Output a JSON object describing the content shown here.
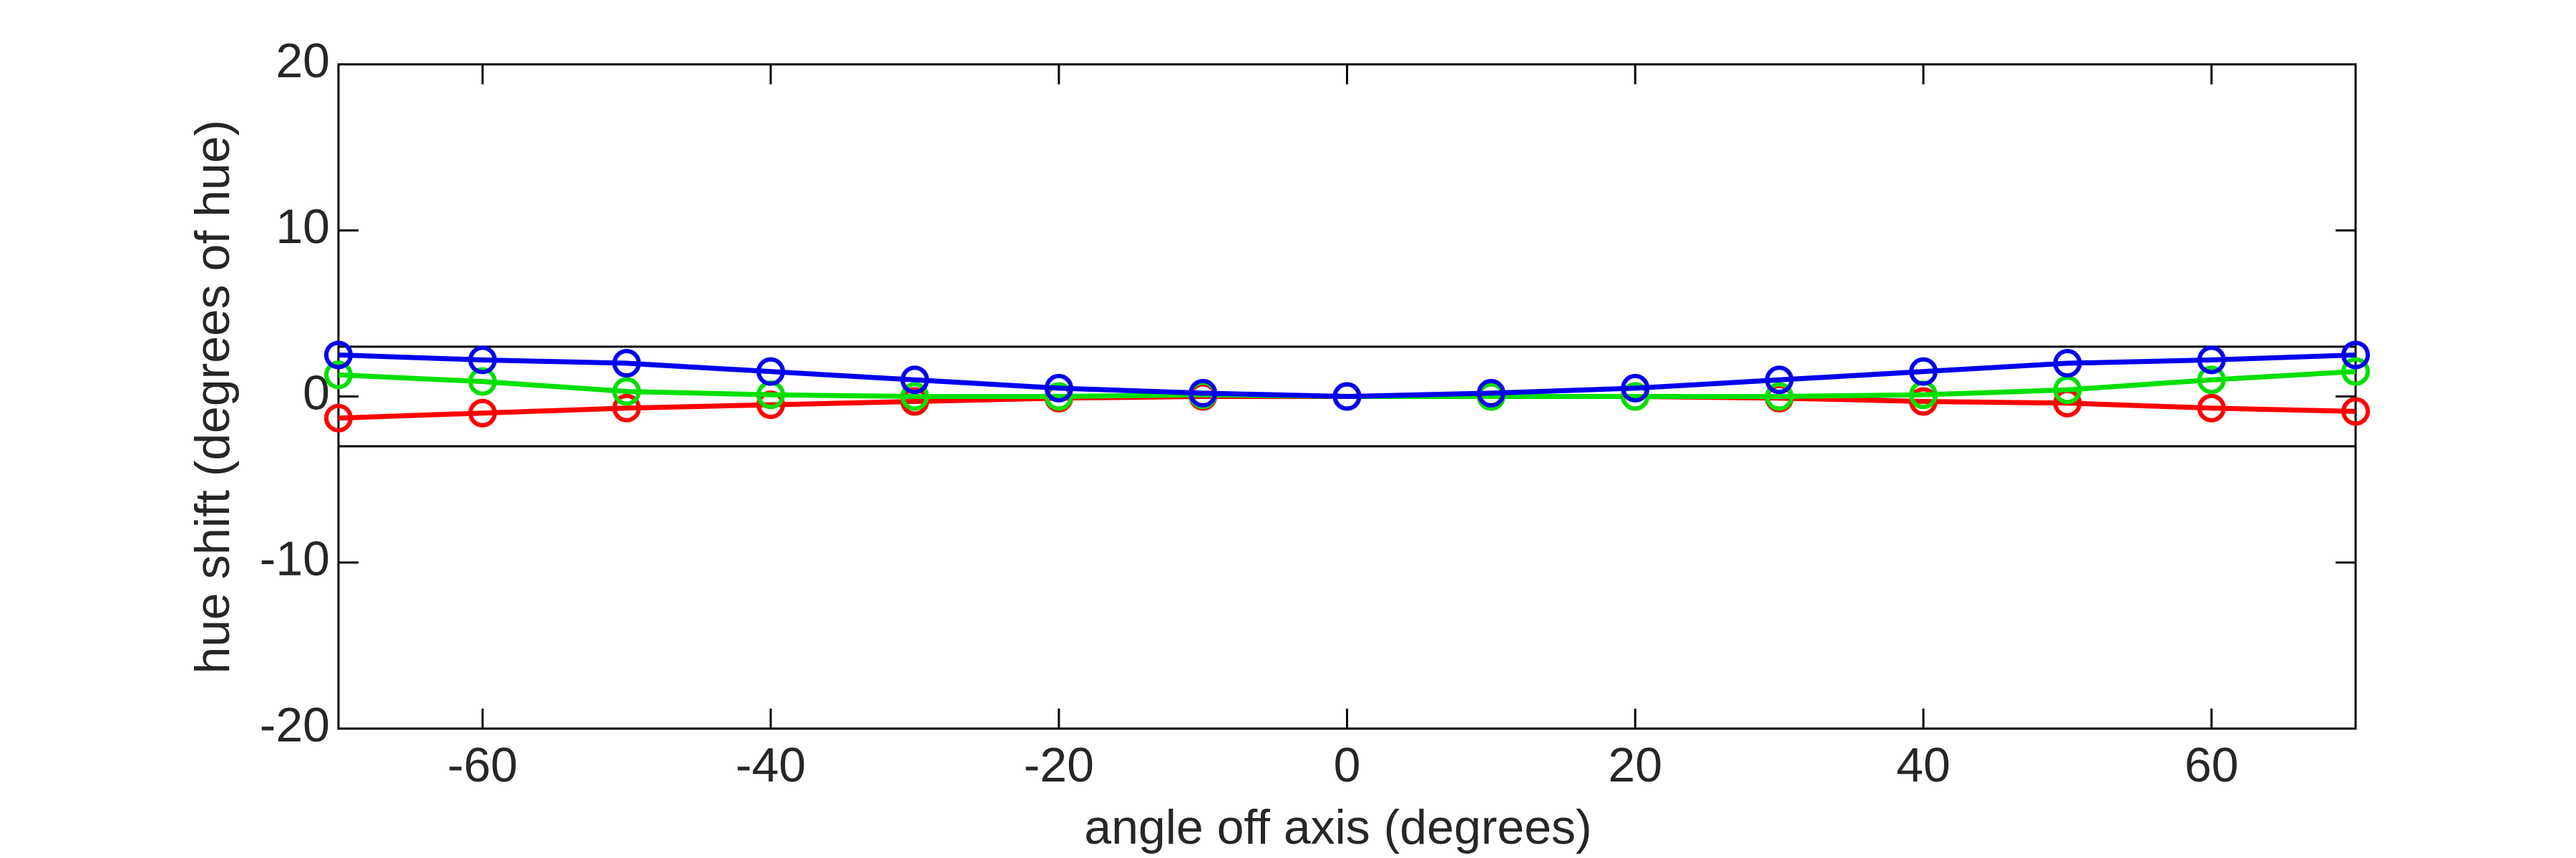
{
  "chart_data": {
    "type": "line",
    "x_label": "angle off axis (degrees)",
    "y_label": "hue shift (degrees of hue)",
    "x": [
      -70,
      -60,
      -50,
      -40,
      -30,
      -20,
      -10,
      0,
      10,
      20,
      30,
      40,
      50,
      60,
      70
    ],
    "series": [
      {
        "color": "#ff0000",
        "values": [
          -1.3,
          -1.0,
          -0.7,
          -0.5,
          -0.3,
          -0.1,
          0,
          0,
          0,
          0,
          -0.1,
          -0.3,
          -0.4,
          -0.7,
          -0.9
        ]
      },
      {
        "color": "#00e000",
        "values": [
          1.3,
          0.9,
          0.3,
          0.1,
          0,
          0,
          0.1,
          0,
          0,
          0,
          0,
          0.1,
          0.4,
          1.0,
          1.5
        ]
      },
      {
        "color": "#0000ee",
        "values": [
          2.5,
          2.2,
          2.0,
          1.5,
          1.0,
          0.5,
          0.2,
          0,
          0.2,
          0.5,
          1.0,
          1.5,
          2.0,
          2.2,
          2.5
        ]
      }
    ],
    "xlim": [
      -70,
      70
    ],
    "xticks": [
      -60,
      -40,
      -20,
      0,
      20,
      40,
      60
    ],
    "ylim": [
      -20,
      20
    ],
    "yticks": [
      -20,
      -10,
      0,
      10,
      20
    ],
    "reference_lines": [
      3,
      -3
    ],
    "grid": false
  }
}
